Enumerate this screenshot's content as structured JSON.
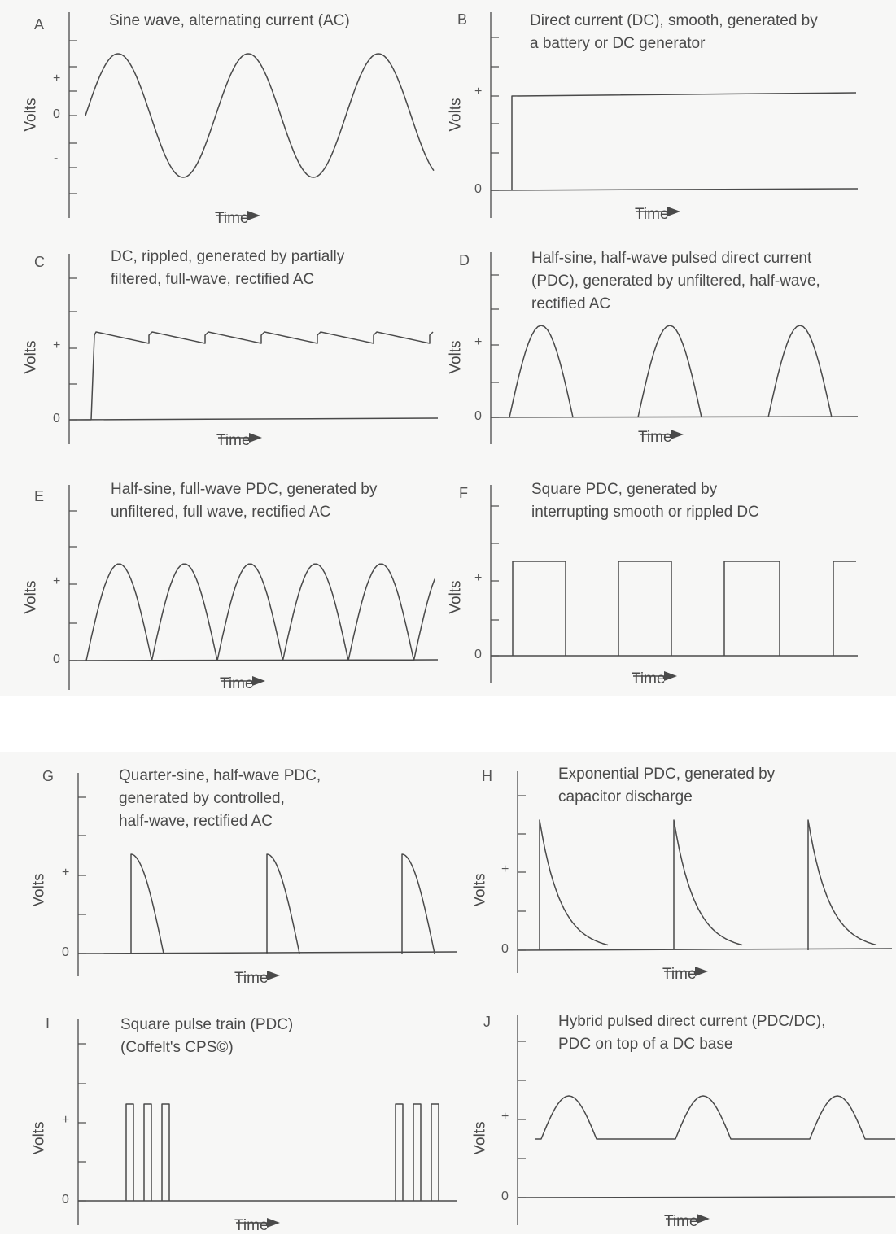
{
  "axis_labels": {
    "y": "Volts",
    "x": "Time"
  },
  "tick_labels": {
    "plus": "+",
    "zero": "0",
    "minus": "-"
  },
  "panels": [
    {
      "letter": "A",
      "caption": "Sine wave, alternating current (AC)",
      "waveform": "sine-ac"
    },
    {
      "letter": "B",
      "caption": "Direct current (DC), smooth, generated by\na battery or DC generator",
      "waveform": "smooth-dc"
    },
    {
      "letter": "C",
      "caption": "DC, rippled, generated by partially\nfiltered, full-wave, rectified AC",
      "waveform": "rippled-dc"
    },
    {
      "letter": "D",
      "caption": "Half-sine, half-wave pulsed direct current\n(PDC), generated by unfiltered, half-wave,\nrectified AC",
      "waveform": "half-sine-half-wave"
    },
    {
      "letter": "E",
      "caption": "Half-sine, full-wave PDC, generated by\nunfiltered, full wave, rectified AC",
      "waveform": "half-sine-full-wave"
    },
    {
      "letter": "F",
      "caption": "Square PDC, generated by\ninterrupting smooth or rippled DC",
      "waveform": "square-pdc"
    },
    {
      "letter": "G",
      "caption": "Quarter-sine, half-wave PDC,\ngenerated by controlled,\nhalf-wave, rectified AC",
      "waveform": "quarter-sine"
    },
    {
      "letter": "H",
      "caption": "Exponential PDC, generated by\ncapacitor discharge",
      "waveform": "exponential"
    },
    {
      "letter": "I",
      "caption": "Square pulse train (PDC)\n(Coffelt's CPS©)",
      "waveform": "pulse-train"
    },
    {
      "letter": "J",
      "caption": "Hybrid pulsed direct current (PDC/DC),\nPDC on top of a DC base",
      "waveform": "hybrid"
    }
  ],
  "colors": {
    "ink": "#4a4a4a",
    "sheet": "#f7f7f6",
    "background": "#ffffff"
  }
}
